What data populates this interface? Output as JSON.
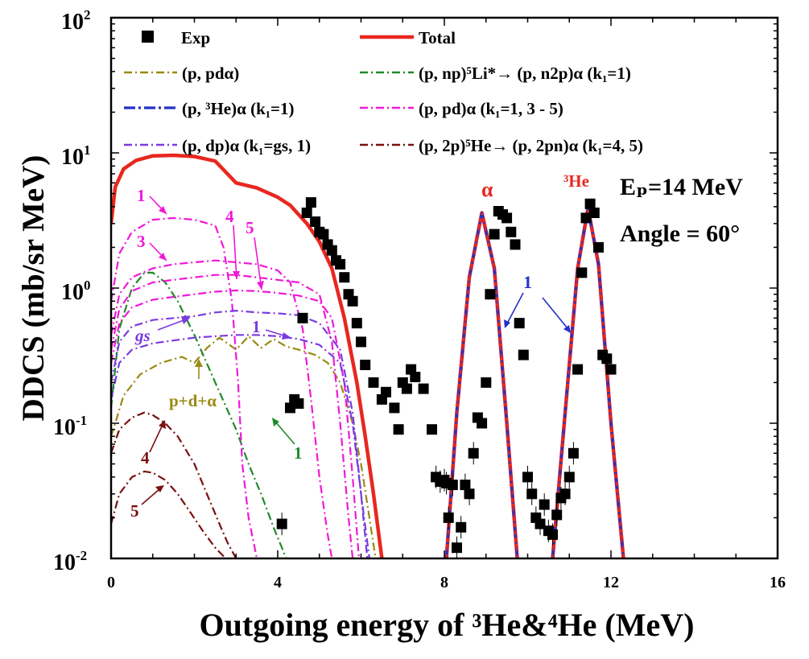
{
  "chart_data": {
    "type": "scatter",
    "xlabel": "Outgoing energy of ³He&⁴He (MeV)",
    "ylabel": "DDCS (mb/sr MeV)",
    "xlim": [
      0,
      16
    ],
    "ylim": [
      0.01,
      100
    ],
    "yscale": "log",
    "x_ticks": [
      "0",
      "4",
      "8",
      "12",
      "16"
    ],
    "y_ticks": [
      {
        "base": "10",
        "exp": "2"
      },
      {
        "base": "10",
        "exp": "1"
      },
      {
        "base": "10",
        "exp": "0"
      },
      {
        "base": "10",
        "exp": "-1"
      },
      {
        "base": "10",
        "exp": "-2"
      }
    ],
    "legend_position": "top",
    "legend": [
      {
        "label": "Exp",
        "style": "square",
        "color": "#000000"
      },
      {
        "label": "Total",
        "style": "solid",
        "color": "#e8271f"
      },
      {
        "label": "(p, pdα)",
        "style": "dashdot",
        "color": "#9a8a12"
      },
      {
        "label": "(p, np)⁵Li*→ (p, n2p)α (k₁=1)",
        "style": "dashdot",
        "color": "#1f8a2a"
      },
      {
        "label": "(p, ³He)α (k₁=1)",
        "style": "dashdot",
        "color": "#2231c6"
      },
      {
        "label": "(p, pd)α (k₁=1, 3 - 5)",
        "style": "dashdot",
        "color": "#f018d8"
      },
      {
        "label": "(p, dp)α (k₁=gs, 1)",
        "style": "dashdot",
        "color": "#7a3ae0"
      },
      {
        "label": "(p, 2p)⁵He→ (p, 2pn)α (k₁=4, 5)",
        "style": "dashdot",
        "color": "#7a1010"
      }
    ],
    "annotations": {
      "energy": "Eₚ=14 MeV",
      "angle": "Angle = 60°",
      "alpha_peak": "α",
      "he3_peak": "³He",
      "pda_label": "p+d+α",
      "label_1": "1",
      "label_3": "3",
      "label_4": "4",
      "label_5": "5",
      "label_gs": "gs"
    },
    "series": [
      {
        "name": "Total",
        "color": "#e8271f",
        "x": [
          0.0,
          0.1,
          0.3,
          0.6,
          1.0,
          1.5,
          2.0,
          2.5,
          3.0,
          3.5,
          4.0,
          4.3,
          4.7,
          5.0,
          5.3,
          5.6,
          5.9,
          6.1,
          6.3,
          6.5
        ],
        "y": [
          3.0,
          5.6,
          7.6,
          8.8,
          9.5,
          9.6,
          9.4,
          8.7,
          6.0,
          5.5,
          4.7,
          4.1,
          3.0,
          2.2,
          1.4,
          0.6,
          0.2,
          0.08,
          0.03,
          0.01
        ]
      },
      {
        "name": "Total",
        "color": "#e8271f",
        "x": [
          8.05,
          8.3,
          8.6,
          8.9,
          9.2,
          9.5,
          9.75
        ],
        "y": [
          0.01,
          0.12,
          1.2,
          3.6,
          1.4,
          0.1,
          0.01
        ]
      },
      {
        "name": "Total",
        "color": "#e8271f",
        "x": [
          10.6,
          10.9,
          11.2,
          11.45,
          11.7,
          12.0,
          12.3
        ],
        "y": [
          0.01,
          0.12,
          1.4,
          3.9,
          1.5,
          0.1,
          0.01
        ]
      },
      {
        "name": "(p, pdα)",
        "color": "#9a8a12",
        "x": [
          0.0,
          0.1,
          0.3,
          0.7,
          1.2,
          1.7,
          2.0,
          2.3,
          2.6,
          3.0,
          3.3,
          3.6,
          3.9,
          4.2,
          4.5,
          4.9,
          5.2,
          5.5,
          5.8,
          6.0,
          6.2,
          6.35
        ],
        "y": [
          0.08,
          0.1,
          0.16,
          0.23,
          0.28,
          0.31,
          0.28,
          0.36,
          0.43,
          0.35,
          0.44,
          0.36,
          0.42,
          0.37,
          0.35,
          0.32,
          0.28,
          0.2,
          0.1,
          0.05,
          0.02,
          0.01
        ]
      },
      {
        "name": "(p, np)⁵Li*→ (p, n2p)α (k₁=1)",
        "color": "#1f8a2a",
        "x": [
          0.0,
          0.2,
          0.5,
          0.8,
          1.0,
          1.3,
          1.6,
          2.0,
          2.5,
          3.0,
          3.3,
          3.6,
          3.9,
          4.1,
          4.2
        ],
        "y": [
          0.13,
          0.5,
          1.0,
          1.3,
          1.3,
          1.1,
          0.8,
          0.45,
          0.2,
          0.09,
          0.05,
          0.03,
          0.017,
          0.012,
          0.01
        ]
      },
      {
        "name": "(p, ³He)α (k₁=1)",
        "color": "#2231c6",
        "x": [
          8.05,
          8.3,
          8.6,
          8.9,
          9.2,
          9.5,
          9.75
        ],
        "y": [
          0.01,
          0.12,
          1.2,
          3.6,
          1.4,
          0.1,
          0.01
        ]
      },
      {
        "name": "(p, ³He)α (k₁=1)",
        "color": "#2231c6",
        "x": [
          10.6,
          10.9,
          11.2,
          11.45,
          11.7,
          12.0,
          12.3
        ],
        "y": [
          0.01,
          0.12,
          1.4,
          3.9,
          1.5,
          0.1,
          0.01
        ]
      },
      {
        "name": "(p, pd)α (k₁=1, 3 - 5)",
        "color": "#f018d8",
        "x": [
          0.0,
          0.2,
          0.5,
          1.0,
          1.5,
          2.0,
          2.5,
          2.7,
          2.9,
          3.05,
          3.15,
          3.3,
          3.5
        ],
        "y": [
          0.8,
          1.8,
          2.6,
          3.2,
          3.3,
          3.2,
          2.9,
          2.0,
          0.8,
          0.2,
          0.05,
          0.02,
          0.01
        ]
      },
      {
        "name": "(p, pd)α (k₁=1, 3 - 5)",
        "color": "#f018d8",
        "x": [
          0.0,
          0.2,
          0.5,
          1.0,
          1.5,
          2.0,
          2.5,
          3.0,
          3.5,
          4.0,
          4.3,
          4.6,
          4.8,
          5.0,
          5.2,
          5.3
        ],
        "y": [
          0.45,
          0.9,
          1.2,
          1.4,
          1.5,
          1.55,
          1.6,
          1.55,
          1.5,
          1.35,
          1.1,
          0.5,
          0.15,
          0.04,
          0.015,
          0.01
        ]
      },
      {
        "name": "(p, pd)α (k₁=1, 3 - 5)",
        "color": "#f018d8",
        "x": [
          0.0,
          0.2,
          0.5,
          1.0,
          1.5,
          2.0,
          2.5,
          3.0,
          3.5,
          4.0,
          4.5,
          5.0,
          5.3,
          5.5,
          5.7,
          5.8
        ],
        "y": [
          0.35,
          0.7,
          0.95,
          1.1,
          1.15,
          1.2,
          1.25,
          1.25,
          1.2,
          1.15,
          1.1,
          0.9,
          0.4,
          0.1,
          0.02,
          0.01
        ]
      },
      {
        "name": "(p, pd)α (k₁=1, 3 - 5)",
        "color": "#f018d8",
        "x": [
          0.0,
          0.2,
          0.5,
          1.0,
          1.5,
          2.0,
          2.5,
          3.0,
          3.5,
          4.0,
          4.5,
          5.0,
          5.3,
          5.6,
          5.8,
          5.95
        ],
        "y": [
          0.28,
          0.55,
          0.72,
          0.82,
          0.86,
          0.9,
          0.94,
          0.96,
          0.95,
          0.92,
          0.88,
          0.8,
          0.6,
          0.2,
          0.04,
          0.01
        ]
      },
      {
        "name": "(p, dp)α (k₁=gs, 1)",
        "color": "#7a3ae0",
        "x": [
          0.0,
          0.2,
          0.5,
          1.0,
          1.5,
          2.0,
          2.5,
          3.0,
          3.5,
          4.0,
          4.5,
          5.0,
          5.5,
          5.8,
          6.0,
          6.15
        ],
        "y": [
          0.2,
          0.4,
          0.52,
          0.58,
          0.6,
          0.62,
          0.66,
          0.68,
          0.66,
          0.65,
          0.63,
          0.55,
          0.35,
          0.12,
          0.03,
          0.01
        ]
      },
      {
        "name": "(p, dp)α (k₁=gs, 1)",
        "color": "#7a3ae0",
        "x": [
          0.0,
          0.2,
          0.5,
          1.0,
          1.5,
          2.0,
          2.5,
          3.0,
          3.5,
          4.0,
          4.5,
          5.0,
          5.5,
          5.8,
          6.0,
          6.2
        ],
        "y": [
          0.15,
          0.28,
          0.35,
          0.39,
          0.41,
          0.43,
          0.44,
          0.45,
          0.45,
          0.44,
          0.42,
          0.38,
          0.28,
          0.1,
          0.03,
          0.01
        ]
      },
      {
        "name": "(p, 2p)⁵He→ (p, 2pn)α (k₁=4, 5)",
        "color": "#7a1010",
        "x": [
          0.0,
          0.2,
          0.5,
          0.8,
          1.0,
          1.3,
          1.6,
          2.0,
          2.3,
          2.6,
          2.8,
          3.0,
          3.05
        ],
        "y": [
          0.06,
          0.09,
          0.11,
          0.12,
          0.115,
          0.1,
          0.08,
          0.05,
          0.03,
          0.018,
          0.013,
          0.01,
          0.009
        ]
      },
      {
        "name": "(p, 2p)⁵He→ (p, 2pn)α (k₁=4, 5)",
        "color": "#7a1010",
        "x": [
          0.0,
          0.2,
          0.5,
          0.8,
          1.0,
          1.3,
          1.6,
          1.9,
          2.2,
          2.5,
          2.75
        ],
        "y": [
          0.018,
          0.03,
          0.04,
          0.044,
          0.043,
          0.038,
          0.03,
          0.022,
          0.016,
          0.012,
          0.01
        ]
      }
    ],
    "exp_points": {
      "x": [
        4.3,
        4.4,
        4.5,
        4.6,
        4.7,
        4.8,
        4.9,
        5.0,
        5.1,
        5.2,
        5.3,
        5.4,
        5.5,
        5.6,
        5.7,
        5.8,
        5.9,
        6.0,
        6.1,
        6.3,
        6.5,
        6.6,
        6.8,
        6.9,
        7.0,
        7.1,
        7.2,
        7.3,
        7.5,
        7.7,
        7.8,
        7.9,
        8.0,
        8.05,
        8.1,
        8.2,
        8.3,
        8.4,
        8.5,
        8.6,
        8.7,
        8.8,
        8.9,
        9.0,
        9.1,
        9.2,
        9.3,
        9.4,
        9.5,
        9.6,
        9.7,
        9.8,
        9.9,
        10.0,
        10.1,
        10.2,
        10.3,
        10.4,
        10.5,
        10.6,
        10.7,
        10.8,
        10.9,
        11.0,
        11.1,
        11.2,
        11.3,
        11.4,
        11.5,
        11.6,
        11.7,
        11.8,
        11.9,
        12.0,
        4.1
      ],
      "y": [
        0.13,
        0.15,
        0.14,
        0.6,
        3.6,
        4.3,
        3.1,
        2.6,
        2.5,
        2.1,
        1.9,
        1.6,
        1.5,
        1.2,
        0.9,
        0.8,
        0.55,
        0.4,
        0.27,
        0.2,
        0.15,
        0.17,
        0.13,
        0.09,
        0.2,
        0.18,
        0.25,
        0.22,
        0.18,
        0.09,
        0.04,
        0.037,
        0.038,
        0.036,
        0.02,
        0.035,
        0.012,
        0.017,
        0.035,
        0.03,
        0.06,
        0.11,
        0.1,
        0.2,
        0.9,
        2.5,
        3.7,
        3.5,
        3.3,
        2.6,
        2.1,
        0.55,
        0.32,
        0.04,
        0.03,
        0.02,
        0.018,
        0.025,
        0.016,
        0.015,
        0.021,
        0.028,
        0.03,
        0.04,
        0.06,
        0.25,
        1.3,
        3.3,
        4.2,
        3.6,
        2.0,
        0.32,
        0.3,
        0.25,
        0.018
      ]
    }
  }
}
